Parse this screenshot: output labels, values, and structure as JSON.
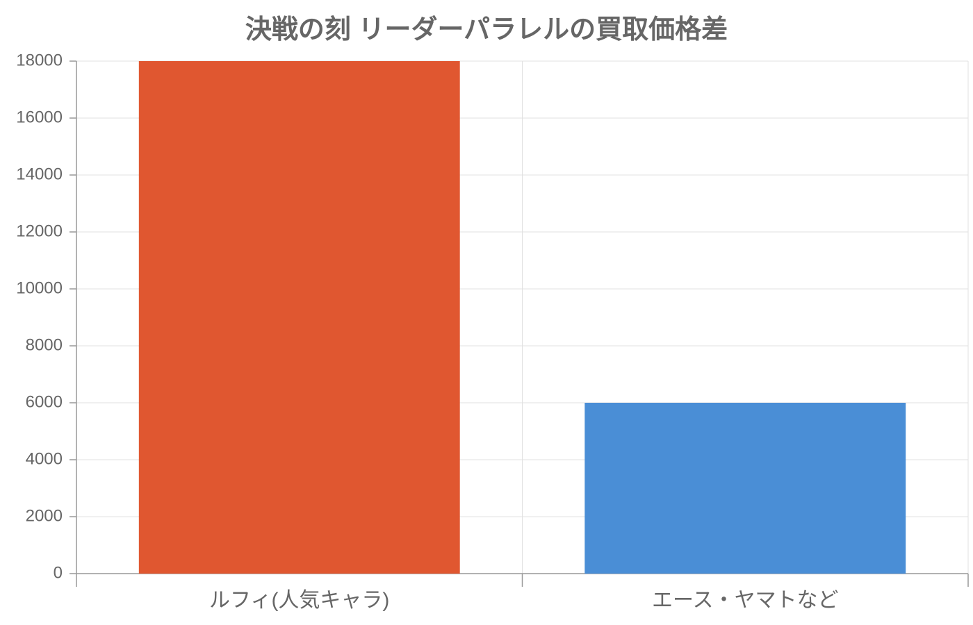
{
  "chart_data": {
    "type": "bar",
    "title": "決戦の刻 リーダーパラレルの買取価格差",
    "categories": [
      "ルフィ(人気キャラ)",
      "エース・ヤマトなど"
    ],
    "values": [
      18000,
      6000
    ],
    "colors": [
      "#e05730",
      "#4a8ed6"
    ],
    "ylim": [
      0,
      18000
    ],
    "yticks": [
      0,
      2000,
      4000,
      6000,
      8000,
      10000,
      12000,
      14000,
      16000,
      18000
    ],
    "grid": true
  }
}
